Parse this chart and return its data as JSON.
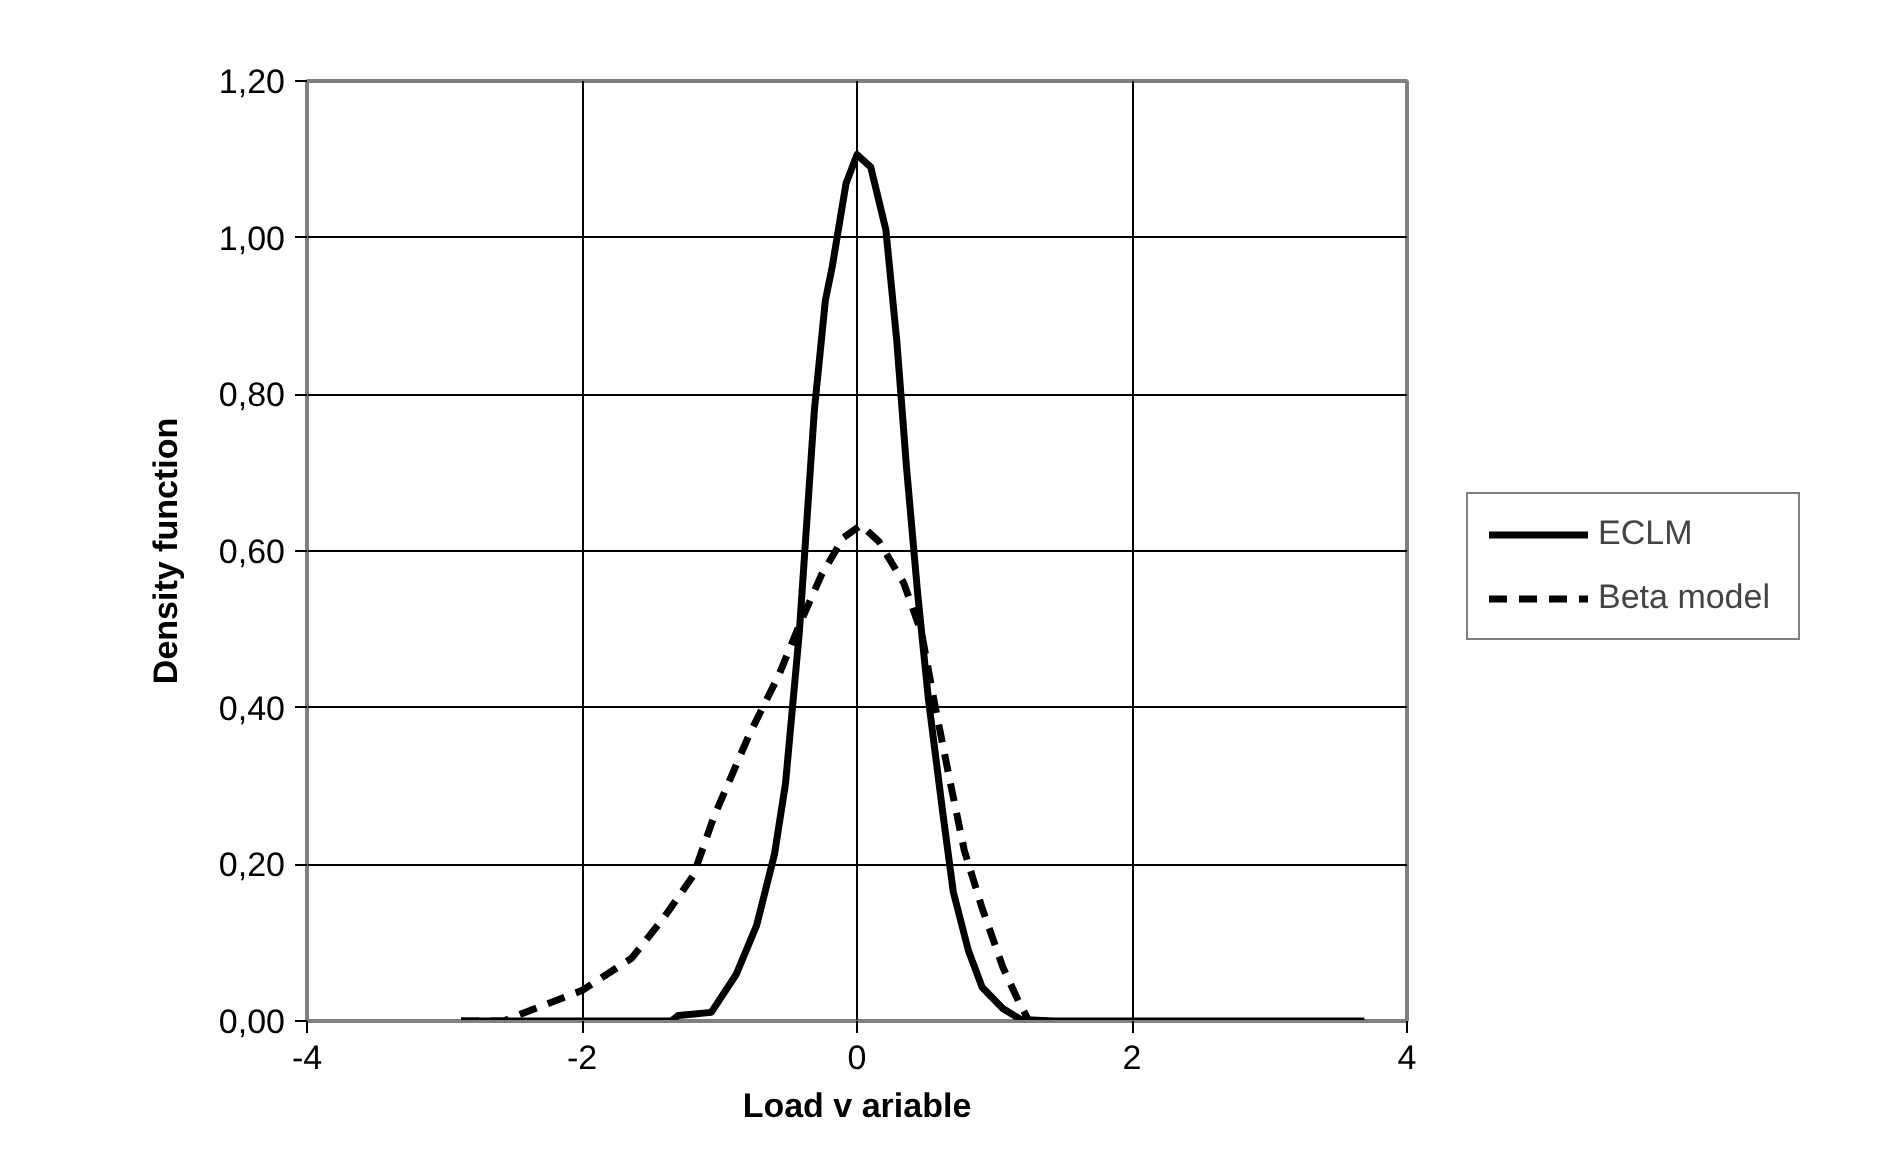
{
  "chart_data": {
    "type": "line",
    "xlabel": "Load v ariable",
    "ylabel": "Density function",
    "xlim": [
      -4,
      4
    ],
    "xticks": [
      -4,
      -2,
      0,
      2,
      4
    ],
    "ylim": [
      0,
      1.2
    ],
    "yticks": [
      {
        "value": 0,
        "label": "0,00"
      },
      {
        "value": 0.2,
        "label": "0,20"
      },
      {
        "value": 0.4,
        "label": "0,40"
      },
      {
        "value": 0.6,
        "label": "0,60"
      },
      {
        "value": 0.8,
        "label": "0,80"
      },
      {
        "value": 1.0,
        "label": "1,00"
      },
      {
        "value": 1.2,
        "label": "1,20"
      }
    ],
    "grid": true,
    "legend": "right",
    "marker": "none",
    "series": [
      {
        "name": "ECLM",
        "color": "#000000",
        "line_style": "solid",
        "x": [
          -2.88,
          -1.35,
          -1.3,
          -1.06,
          -0.88,
          -0.73,
          -0.6,
          -0.52,
          -0.42,
          -0.31,
          -0.23,
          -0.18,
          -0.08,
          0,
          0.1,
          0.21,
          0.29,
          0.36,
          0.44,
          0.52,
          0.62,
          0.7,
          0.81,
          0.91,
          1.06,
          1.19,
          1.43,
          3.69
        ],
        "values": [
          0,
          0,
          0.007,
          0.011,
          0.059,
          0.122,
          0.213,
          0.303,
          0.495,
          0.78,
          0.92,
          0.963,
          1.069,
          1.106,
          1.09,
          1.01,
          0.867,
          0.707,
          0.548,
          0.41,
          0.271,
          0.165,
          0.09,
          0.043,
          0.016,
          0.002,
          0,
          0
        ]
      },
      {
        "name": "Beta model",
        "color": "#000000",
        "line_style": "dashed",
        "x": [
          -2.88,
          -2.57,
          -2.34,
          -2.0,
          -1.64,
          -1.4,
          -1.19,
          -1.04,
          -0.78,
          -0.57,
          -0.42,
          -0.26,
          -0.1,
          0.03,
          0.16,
          0.34,
          0.47,
          0.57,
          0.68,
          0.78,
          0.91,
          1.06,
          1.17,
          1.25
        ],
        "values": [
          0,
          0,
          0.016,
          0.039,
          0.08,
          0.133,
          0.186,
          0.261,
          0.367,
          0.441,
          0.505,
          0.569,
          0.617,
          0.633,
          0.612,
          0.559,
          0.495,
          0.4,
          0.303,
          0.218,
          0.144,
          0.069,
          0.027,
          0
        ]
      }
    ]
  }
}
